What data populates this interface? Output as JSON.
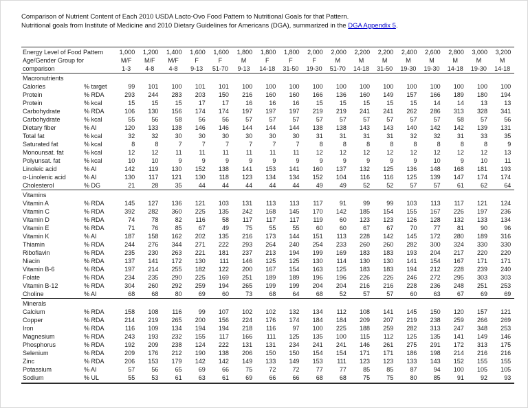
{
  "page": {
    "title_line1": "Comparison of Nutrient Content of Each 2010 USDA Lacto-Ovo Food Pattern to Nutritional Goals for that Pattern.",
    "title_line2_prefix": "Nutritional goals from Institute of Medicine and 2010 Dietary Guidelines for Americans (DGA), summarized in the ",
    "title_link_text": "DGA Appendix 5",
    "title_line2_suffix": "."
  },
  "colors": {
    "link": "#0000cc",
    "text": "#1a1a1a",
    "rule": "#2b2b2b"
  },
  "table": {
    "header": {
      "row1_label": "Energy Level of Food Pattern",
      "row2_label": "Age/Gender Group for",
      "row3_label": "comparison",
      "columns": [
        {
          "energy": "1,000",
          "group": "M/F",
          "age": "1-3"
        },
        {
          "energy": "1,200",
          "group": "M/F",
          "age": "4-8"
        },
        {
          "energy": "1,400",
          "group": "M/F",
          "age": "4-8"
        },
        {
          "energy": "1,600",
          "group": "F",
          "age": "9-13"
        },
        {
          "energy": "1,600",
          "group": "F",
          "age": "51-70"
        },
        {
          "energy": "1,800",
          "group": "M",
          "age": "9-13"
        },
        {
          "energy": "1,800",
          "group": "F",
          "age": "14-18"
        },
        {
          "energy": "1,800",
          "group": "F",
          "age": "31-50"
        },
        {
          "energy": "2,000",
          "group": "F",
          "age": "19-30"
        },
        {
          "energy": "2,000",
          "group": "M",
          "age": "51-70"
        },
        {
          "energy": "2,200",
          "group": "M",
          "age": "14-18"
        },
        {
          "energy": "2,200",
          "group": "M",
          "age": "31-50"
        },
        {
          "energy": "2,400",
          "group": "M",
          "age": "19-30"
        },
        {
          "energy": "2,600",
          "group": "M",
          "age": "19-30"
        },
        {
          "energy": "2,800",
          "group": "M",
          "age": "14-18"
        },
        {
          "energy": "3,000",
          "group": "M",
          "age": "19-30"
        },
        {
          "energy": "3,200",
          "group": "M",
          "age": "14-18"
        }
      ]
    },
    "sections": [
      {
        "name": "Macronutrients",
        "rows": [
          {
            "label": "Calories",
            "unit": "% target",
            "values": [
              99,
              101,
              100,
              101,
              101,
              100,
              100,
              100,
              100,
              100,
              100,
              100,
              100,
              100,
              100,
              100,
              100
            ]
          },
          {
            "label": "Protein",
            "unit": "% RDA",
            "values": [
              293,
              244,
              283,
              203,
              150,
              216,
              160,
              160,
              166,
              136,
              160,
              149,
              157,
              166,
              189,
              180,
              194
            ]
          },
          {
            "label": "Protein",
            "unit": "% kcal",
            "values": [
              15,
              15,
              15,
              17,
              17,
              16,
              16,
              16,
              15,
              15,
              15,
              15,
              15,
              14,
              14,
              13,
              13
            ]
          },
          {
            "label": "Carbohydrate",
            "unit": "% RDA",
            "values": [
              106,
              130,
              156,
              174,
              174,
              197,
              197,
              197,
              219,
              219,
              241,
              241,
              262,
              286,
              313,
              328,
              341
            ]
          },
          {
            "label": "Carbohydrate",
            "unit": "% kcal",
            "values": [
              55,
              56,
              58,
              56,
              56,
              57,
              57,
              57,
              57,
              57,
              57,
              57,
              57,
              57,
              58,
              57,
              56
            ]
          },
          {
            "label": "Dietary fiber",
            "unit": "% AI",
            "values": [
              120,
              133,
              138,
              146,
              146,
              144,
              144,
              144,
              138,
              138,
              143,
              143,
              140,
              142,
              142,
              139,
              131
            ]
          },
          {
            "label": "Total fat",
            "unit": "% kcal",
            "values": [
              32,
              32,
              30,
              30,
              30,
              30,
              30,
              30,
              31,
              31,
              31,
              31,
              32,
              32,
              31,
              33,
              35
            ]
          },
          {
            "label": "Saturated fat",
            "unit": "% kcal",
            "values": [
              8,
              8,
              7,
              7,
              7,
              7,
              7,
              7,
              8,
              8,
              8,
              8,
              8,
              8,
              8,
              8,
              9
            ]
          },
          {
            "label": "Monounsat. fat",
            "unit": "% kcal",
            "values": [
              12,
              12,
              11,
              11,
              11,
              11,
              11,
              11,
              12,
              12,
              12,
              12,
              12,
              12,
              12,
              12,
              13
            ]
          },
          {
            "label": "Polyunsat. fat",
            "unit": "% kcal",
            "values": [
              10,
              10,
              9,
              9,
              9,
              9,
              9,
              9,
              9,
              9,
              9,
              9,
              9,
              10,
              9,
              10,
              11
            ]
          },
          {
            "label": "Linoleic acid",
            "unit": "% AI",
            "values": [
              142,
              119,
              130,
              152,
              138,
              141,
              153,
              141,
              160,
              137,
              132,
              125,
              136,
              148,
              168,
              181,
              193
            ]
          },
          {
            "label": "α-Linolenic acid",
            "unit": "% AI",
            "values": [
              130,
              117,
              121,
              130,
              118,
              123,
              134,
              134,
              152,
              104,
              116,
              116,
              125,
              139,
              147,
              174,
              174
            ]
          },
          {
            "label": "Cholesterol",
            "unit": "% DG",
            "values": [
              21,
              28,
              35,
              44,
              44,
              44,
              44,
              44,
              49,
              49,
              52,
              52,
              57,
              57,
              61,
              62,
              64
            ]
          }
        ]
      },
      {
        "name": "Vitamins",
        "rows": [
          {
            "label": "Vitamin A",
            "unit": "% RDA",
            "values": [
              145,
              127,
              136,
              121,
              103,
              131,
              113,
              113,
              117,
              91,
              99,
              99,
              103,
              113,
              117,
              121,
              124
            ]
          },
          {
            "label": "Vitamin C",
            "unit": "% RDA",
            "values": [
              392,
              282,
              360,
              225,
              135,
              242,
              168,
              145,
              170,
              142,
              185,
              154,
              155,
              167,
              226,
              197,
              236
            ]
          },
          {
            "label": "Vitamin D",
            "unit": "% RDA",
            "values": [
              74,
              78,
              82,
              116,
              58,
              117,
              117,
              117,
              119,
              60,
              123,
              123,
              126,
              128,
              132,
              133,
              134
            ]
          },
          {
            "label": "Vitamin E",
            "unit": "% RDA",
            "values": [
              71,
              76,
              85,
              67,
              49,
              75,
              55,
              55,
              60,
              60,
              67,
              67,
              70,
              77,
              81,
              90,
              96
            ]
          },
          {
            "label": "Vitamin K",
            "unit": "% AI",
            "values": [
              187,
              158,
              162,
              202,
              135,
              216,
              173,
              144,
              151,
              113,
              228,
              142,
              145,
              172,
              280,
              189,
              316
            ]
          },
          {
            "label": "Thiamin",
            "unit": "% RDA",
            "values": [
              244,
              276,
              344,
              271,
              222,
              293,
              264,
              240,
              254,
              233,
              260,
              260,
              282,
              300,
              324,
              330,
              330
            ]
          },
          {
            "label": "Riboflavin",
            "unit": "% RDA",
            "values": [
              235,
              230,
              263,
              221,
              181,
              237,
              213,
              194,
              199,
              169,
              183,
              183,
              193,
              204,
              217,
              220,
              220
            ]
          },
          {
            "label": "Niacin",
            "unit": "% RDA",
            "values": [
              137,
              141,
              172,
              130,
              111,
              146,
              125,
              125,
              130,
              114,
              130,
              130,
              141,
              154,
              167,
              171,
              171
            ]
          },
          {
            "label": "Vitamin B-6",
            "unit": "% RDA",
            "values": [
              197,
              214,
              255,
              182,
              122,
              200,
              167,
              154,
              163,
              125,
              183,
              183,
              194,
              212,
              228,
              239,
              240
            ]
          },
          {
            "label": "Folate",
            "unit": "% RDA",
            "values": [
              234,
              235,
              290,
              225,
              169,
              251,
              189,
              189,
              196,
              196,
              226,
              226,
              246,
              272,
              295,
              303,
              303
            ]
          },
          {
            "label": "Vitamin B-12",
            "unit": "% RDA",
            "values": [
              304,
              260,
              292,
              259,
              194,
              265,
              199,
              199,
              204,
              204,
              216,
              216,
              228,
              236,
              248,
              251,
              253
            ]
          },
          {
            "label": "Choline",
            "unit": "% AI",
            "values": [
              68,
              68,
              80,
              69,
              60,
              73,
              68,
              64,
              68,
              52,
              57,
              57,
              60,
              63,
              67,
              69,
              69
            ]
          }
        ]
      },
      {
        "name": "Minerals",
        "rows": [
          {
            "label": "Calcium",
            "unit": "% RDA",
            "values": [
              158,
              108,
              116,
              99,
              107,
              102,
              102,
              132,
              134,
              112,
              108,
              141,
              145,
              150,
              120,
              157,
              121
            ]
          },
          {
            "label": "Copper",
            "unit": "% RDA",
            "values": [
              214,
              219,
              265,
              200,
              156,
              224,
              176,
              174,
              184,
              184,
              209,
              207,
              219,
              238,
              259,
              266,
              269
            ]
          },
          {
            "label": "Iron",
            "unit": "% RDA",
            "values": [
              116,
              109,
              134,
              194,
              194,
              218,
              116,
              97,
              100,
              225,
              188,
              259,
              282,
              313,
              247,
              348,
              253
            ]
          },
          {
            "label": "Magnesium",
            "unit": "% RDA",
            "values": [
              243,
              193,
              232,
              155,
              117,
              166,
              111,
              125,
              135,
              100,
              115,
              112,
              125,
              135,
              141,
              149,
              146
            ]
          },
          {
            "label": "Phosphorus",
            "unit": "% RDA",
            "values": [
              192,
              209,
              238,
              124,
              222,
              131,
              131,
              234,
              241,
              241,
              146,
              261,
              275,
              291,
              172,
              313,
              175
            ]
          },
          {
            "label": "Selenium",
            "unit": "% RDA",
            "values": [
              209,
              176,
              212,
              190,
              138,
              206,
              150,
              150,
              154,
              154,
              171,
              171,
              186,
              198,
              214,
              216,
              216
            ]
          },
          {
            "label": "Zinc",
            "unit": "% RDA",
            "values": [
              206,
              153,
              179,
              142,
              142,
              149,
              133,
              149,
              153,
              111,
              123,
              123,
              133,
              143,
              152,
              155,
              155
            ]
          },
          {
            "label": "Potassium",
            "unit": "% AI",
            "values": [
              57,
              56,
              65,
              69,
              66,
              75,
              72,
              72,
              77,
              77,
              85,
              85,
              87,
              94,
              100,
              105,
              105
            ]
          },
          {
            "label": "Sodium",
            "unit": "% UL",
            "values": [
              55,
              53,
              61,
              63,
              61,
              69,
              66,
              66,
              68,
              68,
              75,
              75,
              80,
              85,
              91,
              92,
              93
            ]
          }
        ]
      }
    ]
  }
}
